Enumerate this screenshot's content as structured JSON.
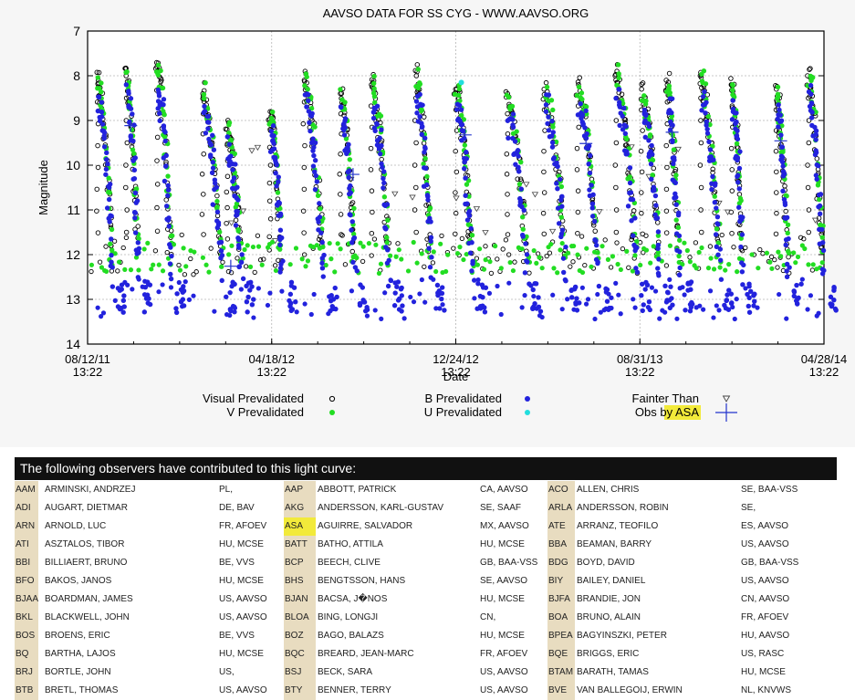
{
  "chart_data": {
    "type": "scatter",
    "title": "AAVSO DATA FOR SS CYG - WWW.AAVSO.ORG",
    "xlabel": "Date",
    "ylabel": "Magnitude",
    "y_inverted": true,
    "ylim": [
      14,
      7
    ],
    "yticks": [
      "7",
      "8",
      "9",
      "10",
      "11",
      "12",
      "13",
      "14"
    ],
    "xticks": [
      {
        "date": "08/12/11",
        "time": "13:22"
      },
      {
        "date": "04/18/12",
        "time": "13:22"
      },
      {
        "date": "12/24/12",
        "time": "13:22"
      },
      {
        "date": "08/31/13",
        "time": "13:22"
      },
      {
        "date": "04/28/14",
        "time": "13:22"
      }
    ],
    "grid": true,
    "legend": [
      {
        "label": "Visual Prevalidated",
        "color": "#000000",
        "marker": "open-circle"
      },
      {
        "label": "V Prevalidated",
        "color": "#22dd22",
        "marker": "filled-circle"
      },
      {
        "label": "B Prevalidated",
        "color": "#2222dd",
        "marker": "filled-circle"
      },
      {
        "label": "U Prevalidated",
        "color": "#22dddd",
        "marker": "filled-circle"
      },
      {
        "label": "Fainter Than",
        "color": "#000000",
        "marker": "open-triangle-down"
      },
      {
        "label": "Obs by ASA",
        "color": "#2233cc",
        "marker": "plus",
        "highlight": "ASA"
      }
    ],
    "legend_placement": "bottom",
    "outbursts": [
      {
        "date": "2011-08-30",
        "peak": 8.1
      },
      {
        "date": "2011-10-08",
        "peak": 8.0
      },
      {
        "date": "2011-11-18",
        "peak": 7.8
      },
      {
        "date": "2012-01-19",
        "peak": 8.4
      },
      {
        "date": "2012-02-20",
        "peak": 9.2
      },
      {
        "date": "2012-04-18",
        "peak": 8.8
      },
      {
        "date": "2012-06-03",
        "peak": 8.1
      },
      {
        "date": "2012-07-22",
        "peak": 8.4
      },
      {
        "date": "2012-09-02",
        "peak": 8.2
      },
      {
        "date": "2012-10-31",
        "peak": 8.0
      },
      {
        "date": "2012-12-24",
        "peak": 8.3
      },
      {
        "date": "2013-03-03",
        "peak": 8.4
      },
      {
        "date": "2013-04-22",
        "peak": 8.3
      },
      {
        "date": "2013-06-06",
        "peak": 8.2
      },
      {
        "date": "2013-07-27",
        "peak": 8.0
      },
      {
        "date": "2013-08-31",
        "peak": 8.3
      },
      {
        "date": "2013-10-04",
        "peak": 8.1
      },
      {
        "date": "2013-11-18",
        "peak": 8.0
      },
      {
        "date": "2013-12-30",
        "peak": 8.2
      },
      {
        "date": "2014-02-28",
        "peak": 8.3
      },
      {
        "date": "2014-04-12",
        "peak": 8.0
      }
    ],
    "quiescence_magnitude": 12.0
  },
  "observers": {
    "header": "The following observers have contributed to this light curve:",
    "rows": [
      [
        [
          "AAM",
          "ARMINSKI, ANDRZEJ",
          "PL,"
        ],
        [
          "AAP",
          "ABBOTT, PATRICK",
          "CA, AAVSO"
        ],
        [
          "ACO",
          "ALLEN, CHRIS",
          "SE, BAA-VSS"
        ]
      ],
      [
        [
          "ADI",
          "AUGART, DIETMAR",
          "DE, BAV"
        ],
        [
          "AKG",
          "ANDERSSON, KARL-GUSTAV",
          "SE, SAAF"
        ],
        [
          "ARLA",
          "ANDERSSON, ROBIN",
          "SE,"
        ]
      ],
      [
        [
          "ARN",
          "ARNOLD, LUC",
          "FR, AFOEV"
        ],
        [
          "ASA",
          "AGUIRRE, SALVADOR",
          "MX, AAVSO"
        ],
        [
          "ATE",
          "ARRANZ, TEOFILO",
          "ES, AAVSO"
        ]
      ],
      [
        [
          "ATI",
          "ASZTALOS, TIBOR",
          "HU, MCSE"
        ],
        [
          "BATT",
          "BATHO, ATTILA",
          "HU, MCSE"
        ],
        [
          "BBA",
          "BEAMAN, BARRY",
          "US, AAVSO"
        ]
      ],
      [
        [
          "BBI",
          "BILLIAERT, BRUNO",
          "BE, VVS"
        ],
        [
          "BCP",
          "BEECH, CLIVE",
          "GB, BAA-VSS"
        ],
        [
          "BDG",
          "BOYD, DAVID",
          "GB, BAA-VSS"
        ]
      ],
      [
        [
          "BFO",
          "BAKOS, JANOS",
          "HU, MCSE"
        ],
        [
          "BHS",
          "BENGTSSON, HANS",
          "SE, AAVSO"
        ],
        [
          "BIY",
          "BAILEY, DANIEL",
          "US, AAVSO"
        ]
      ],
      [
        [
          "BJAA",
          "BOARDMAN, JAMES",
          "US, AAVSO"
        ],
        [
          "BJAN",
          "BACSA, J�NOS",
          "HU, MCSE"
        ],
        [
          "BJFA",
          "BRANDIE, JON",
          "CN, AAVSO"
        ]
      ],
      [
        [
          "BKL",
          "BLACKWELL, JOHN",
          "US, AAVSO"
        ],
        [
          "BLOA",
          "BING, LONGJI",
          "CN,"
        ],
        [
          "BOA",
          "BRUNO, ALAIN",
          "FR, AFOEV"
        ]
      ],
      [
        [
          "BOS",
          "BROENS, ERIC",
          "BE, VVS"
        ],
        [
          "BOZ",
          "BAGO, BALAZS",
          "HU, MCSE"
        ],
        [
          "BPEA",
          "BAGYINSZKI, PETER",
          "HU, AAVSO"
        ]
      ],
      [
        [
          "BQ",
          "BARTHA, LAJOS",
          "HU, MCSE"
        ],
        [
          "BQC",
          "BREARD, JEAN-MARC",
          "FR, AFOEV"
        ],
        [
          "BQE",
          "BRIGGS, ERIC",
          "US, RASC"
        ]
      ],
      [
        [
          "BRJ",
          "BORTLE, JOHN",
          "US,"
        ],
        [
          "BSJ",
          "BECK, SARA",
          "US, AAVSO"
        ],
        [
          "BTAM",
          "BARATH, TAMAS",
          "HU, MCSE"
        ]
      ],
      [
        [
          "BTB",
          "BRETL, THOMAS",
          "US, AAVSO"
        ],
        [
          "BTY",
          "BENNER, TERRY",
          "US, AAVSO"
        ],
        [
          "BVE",
          "VAN BALLEGOIJ, ERWIN",
          "NL, KNVWS"
        ]
      ]
    ],
    "highlight_code": "ASA"
  },
  "colors": {
    "visual": "#000000",
    "v_band": "#22dd22",
    "b_band": "#2222dd",
    "u_band": "#22dddd",
    "asa": "#2233cc",
    "highlight": "#f2ea3a"
  }
}
